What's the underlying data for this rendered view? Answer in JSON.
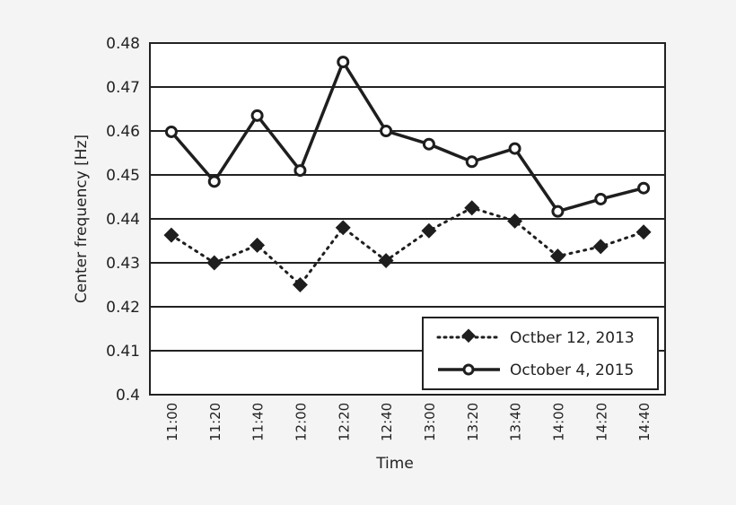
{
  "chart_data": {
    "type": "line",
    "title": "",
    "xlabel": "Time",
    "ylabel": "Center frequency [Hz]",
    "ylim": [
      0.4,
      0.48
    ],
    "yticks": [
      "0.4",
      "0.41",
      "0.42",
      "0.43",
      "0.44",
      "0.45",
      "0.46",
      "0.47",
      "0.48"
    ],
    "grid": "horizontal",
    "legend_position": "lower right",
    "categories": [
      "11:00",
      "11:20",
      "11:40",
      "12:00",
      "12:20",
      "12:40",
      "13:00",
      "13:20",
      "13:40",
      "14:00",
      "14:20",
      "14:40"
    ],
    "series": [
      {
        "name": "Octber 12, 2013",
        "style": "dotted",
        "marker": "diamond",
        "values": [
          0.4363,
          0.43,
          0.434,
          0.425,
          0.438,
          0.4305,
          0.4373,
          0.4425,
          0.4395,
          0.4315,
          0.4337,
          0.437
        ]
      },
      {
        "name": "October 4, 2015",
        "style": "solid",
        "marker": "open-circle",
        "values": [
          0.4598,
          0.4485,
          0.4635,
          0.451,
          0.4757,
          0.46,
          0.457,
          0.453,
          0.456,
          0.4417,
          0.4445,
          0.447
        ]
      }
    ]
  },
  "colors": {
    "line": "#1e1e1e",
    "background": "#f4f4f4",
    "plot": "#ffffff"
  }
}
